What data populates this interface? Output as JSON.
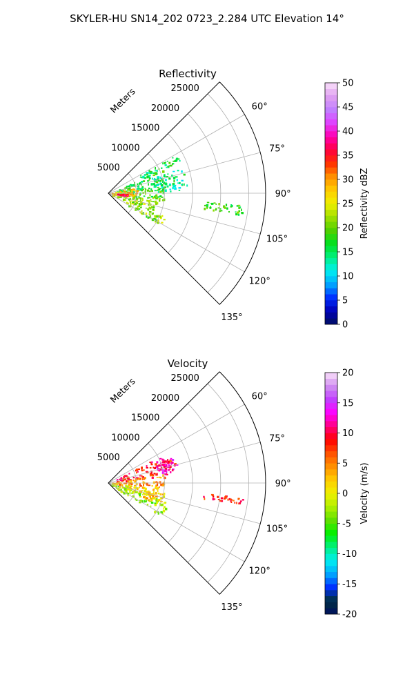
{
  "title": "SKYLER-HU  SN14_202  0723_2.284 UTC Elevation 14°",
  "chart_data": [
    {
      "type": "heatmap",
      "subtype": "polar-sector",
      "title": "Reflectivity",
      "range_label": "Meters",
      "range_ticks": [
        "5000",
        "10000",
        "15000",
        "20000",
        "25000"
      ],
      "angle_ticks": [
        "60°",
        "75°",
        "90°",
        "105°",
        "120°",
        "135°"
      ],
      "range_lim": [
        0,
        28000
      ],
      "azimuth_lim": [
        45,
        135
      ],
      "grid": true,
      "colorbar": {
        "label": "Reflectivity dBZ",
        "ticks": [
          "0",
          "5",
          "10",
          "15",
          "20",
          "25",
          "30",
          "35",
          "40",
          "45",
          "50"
        ],
        "lim": [
          0,
          50
        ],
        "stops": [
          "#001060",
          "#0000b8",
          "#0030ff",
          "#00a8ff",
          "#00f0f0",
          "#00f080",
          "#00e020",
          "#50d000",
          "#a0e000",
          "#f0f000",
          "#ffcc00",
          "#ff9000",
          "#ff3000",
          "#ff0040",
          "#ff00b0",
          "#e040ff",
          "#c080ff",
          "#e0a0f0",
          "#fae0fa"
        ]
      },
      "echo_regions": [
        {
          "az": [
            60,
            66
          ],
          "range": [
            6000,
            14000
          ],
          "value": 16
        },
        {
          "az": [
            66,
            86
          ],
          "range": [
            1500,
            11000
          ],
          "value": 17
        },
        {
          "az": [
            70,
            88
          ],
          "range": [
            8000,
            14000
          ],
          "value": 14
        },
        {
          "az": [
            84,
            98
          ],
          "range": [
            600,
            10000
          ],
          "value": 19
        },
        {
          "az": [
            98,
            112
          ],
          "range": [
            500,
            9000
          ],
          "value": 22
        },
        {
          "az": [
            112,
            122
          ],
          "range": [
            3500,
            11000
          ],
          "value": 21
        },
        {
          "az": [
            95,
            99
          ],
          "range": [
            17000,
            24000
          ],
          "value": 18
        },
        {
          "az": [
            78,
            96
          ],
          "range": [
            500,
            5000
          ],
          "value": 28
        },
        {
          "az": [
            92,
            95
          ],
          "range": [
            1500,
            3500
          ],
          "value": 36
        }
      ]
    },
    {
      "type": "heatmap",
      "subtype": "polar-sector",
      "title": "Velocity",
      "range_label": "Meters",
      "range_ticks": [
        "5000",
        "10000",
        "15000",
        "20000",
        "25000"
      ],
      "angle_ticks": [
        "60°",
        "75°",
        "90°",
        "105°",
        "120°",
        "135°"
      ],
      "range_lim": [
        0,
        28000
      ],
      "azimuth_lim": [
        45,
        135
      ],
      "grid": true,
      "colorbar": {
        "label": "Velocity (m/s)",
        "ticks": [
          "-20",
          "-15",
          "-10",
          "-5",
          "0",
          "5",
          "10",
          "15",
          "20"
        ],
        "lim": [
          -20,
          20
        ],
        "stops": [
          "#001060",
          "#003040",
          "#0030ff",
          "#00a8ff",
          "#00f0f0",
          "#00f080",
          "#00f000",
          "#60e000",
          "#b0f000",
          "#f0f000",
          "#ffcc00",
          "#ff9000",
          "#ff5000",
          "#ff0000",
          "#ff0080",
          "#ff00ff",
          "#c040ff",
          "#d090f0",
          "#fae0fa"
        ]
      },
      "echo_regions": [
        {
          "az": [
            62,
            82
          ],
          "range": [
            1500,
            12500
          ],
          "value": 9
        },
        {
          "az": [
            68,
            78
          ],
          "range": [
            9000,
            12500
          ],
          "value": 12
        },
        {
          "az": [
            80,
            95
          ],
          "range": [
            600,
            10000
          ],
          "value": 4
        },
        {
          "az": [
            95,
            106
          ],
          "range": [
            500,
            9000
          ],
          "value": 1
        },
        {
          "az": [
            106,
            122
          ],
          "range": [
            600,
            11000
          ],
          "value": -3
        },
        {
          "az": [
            96,
            99
          ],
          "range": [
            17000,
            24000
          ],
          "value": 8
        },
        {
          "az": [
            100,
            112
          ],
          "range": [
            6500,
            10000
          ],
          "value": 2
        }
      ]
    }
  ]
}
